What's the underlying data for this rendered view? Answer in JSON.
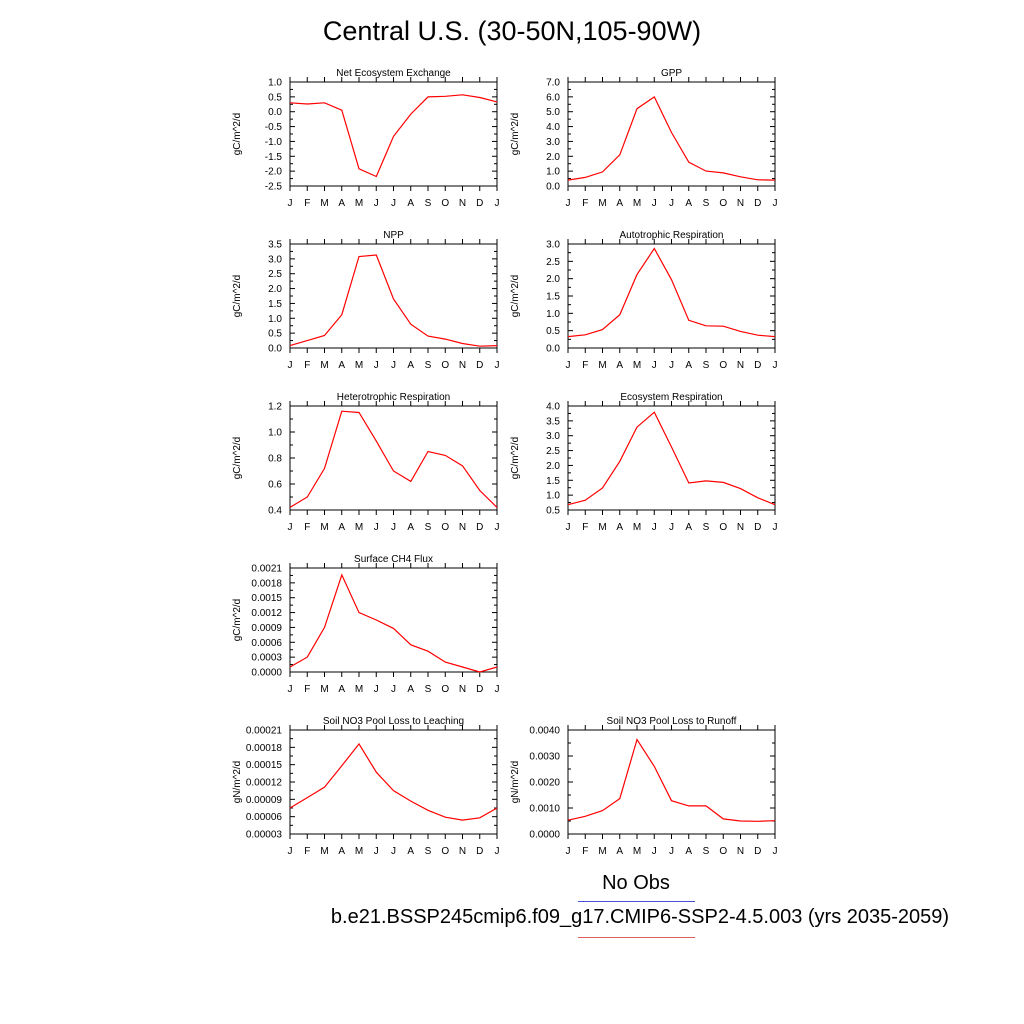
{
  "title": "Central U.S. (30-50N,105-90W)",
  "legend": [
    {
      "label": "No Obs",
      "color": "#4a50d8"
    },
    {
      "label": "b.e21.BSSP245cmip6.f09_g17.CMIP6-SSP2-4.5.003 (yrs 2035-2059)",
      "color": "#e06060"
    }
  ],
  "months": [
    "J",
    "F",
    "M",
    "A",
    "M",
    "J",
    "J",
    "A",
    "S",
    "O",
    "N",
    "D",
    "J"
  ],
  "line_color": "#ff0000",
  "chart_data": [
    {
      "type": "line",
      "title": "Net Ecosystem Exchange",
      "ylabel": "gC/m^2/d",
      "ylim": [
        -2.5,
        1.0
      ],
      "yticks": [
        "1.0",
        "0.5",
        "0.0",
        "-0.5",
        "-1.0",
        "-1.5",
        "-2.0",
        "-2.5"
      ],
      "values": [
        0.3,
        0.26,
        0.3,
        0.05,
        -1.92,
        -2.18,
        -0.83,
        -0.08,
        0.5,
        0.52,
        0.57,
        0.48,
        0.33
      ]
    },
    {
      "type": "line",
      "title": "GPP",
      "ylabel": "gC/m^2/d",
      "ylim": [
        0.0,
        7.0
      ],
      "yticks": [
        "7.0",
        "6.0",
        "5.0",
        "4.0",
        "3.0",
        "2.0",
        "1.0",
        "0.0"
      ],
      "values": [
        0.4,
        0.58,
        0.95,
        2.1,
        5.2,
        6.0,
        3.6,
        1.6,
        1.0,
        0.88,
        0.62,
        0.42,
        0.4
      ]
    },
    {
      "type": "line",
      "title": "NPP",
      "ylabel": "gC/m^2/d",
      "ylim": [
        0.0,
        3.5
      ],
      "yticks": [
        "3.5",
        "3.0",
        "2.5",
        "2.0",
        "1.5",
        "1.0",
        "0.5",
        "0.0"
      ],
      "values": [
        0.08,
        0.25,
        0.42,
        1.12,
        3.08,
        3.13,
        1.65,
        0.8,
        0.4,
        0.3,
        0.15,
        0.06,
        0.08
      ]
    },
    {
      "type": "line",
      "title": "Autotrophic Respiration",
      "ylabel": "gC/m^2/d",
      "ylim": [
        0.0,
        3.0
      ],
      "yticks": [
        "3.0",
        "2.5",
        "2.0",
        "1.5",
        "1.0",
        "0.5",
        "0.0"
      ],
      "values": [
        0.33,
        0.38,
        0.53,
        0.96,
        2.12,
        2.87,
        1.97,
        0.8,
        0.64,
        0.63,
        0.48,
        0.37,
        0.33
      ]
    },
    {
      "type": "line",
      "title": "Heterotrophic Respiration",
      "ylabel": "gC/m^2/d",
      "ylim": [
        0.4,
        1.2
      ],
      "yticks": [
        "1.2",
        "1.0",
        "0.8",
        "0.6",
        "0.4"
      ],
      "values": [
        0.42,
        0.5,
        0.72,
        1.16,
        1.15,
        0.93,
        0.7,
        0.62,
        0.85,
        0.82,
        0.74,
        0.55,
        0.42
      ]
    },
    {
      "type": "line",
      "title": "Ecosystem Respiration",
      "ylabel": "gC/m^2/d",
      "ylim": [
        0.5,
        4.0
      ],
      "yticks": [
        "4.0",
        "3.5",
        "3.0",
        "2.5",
        "2.0",
        "1.5",
        "1.0",
        "0.5"
      ],
      "values": [
        0.68,
        0.83,
        1.24,
        2.14,
        3.29,
        3.79,
        2.62,
        1.41,
        1.48,
        1.43,
        1.22,
        0.91,
        0.68
      ]
    },
    {
      "type": "line",
      "title": "Surface CH4 Flux",
      "ylabel": "gC/m^2/d",
      "ylim": [
        0.0,
        0.0021
      ],
      "yticks": [
        "0.0021",
        "0.0018",
        "0.0015",
        "0.0012",
        "0.0009",
        "0.0006",
        "0.0003",
        "0.0000"
      ],
      "values": [
        0.0001,
        0.0003,
        0.0009,
        0.00196,
        0.0012,
        0.00105,
        0.00088,
        0.00055,
        0.00042,
        0.0002,
        0.0001,
        0.0,
        0.0001
      ]
    },
    {
      "type": "line",
      "title": "Soil NO3 Pool Loss to Leaching",
      "ylabel": "gN/m^2/d",
      "ylim": [
        3e-05,
        0.00021
      ],
      "yticks": [
        "0.00021",
        "0.00018",
        "0.00015",
        "0.00012",
        "0.00009",
        "0.00006",
        "0.00003"
      ],
      "values": [
        7.5e-05,
        9.3e-05,
        0.000111,
        0.000148,
        0.000186,
        0.000137,
        0.000105,
        8.7e-05,
        7.1e-05,
        5.9e-05,
        5.4e-05,
        5.8e-05,
        7.5e-05
      ]
    },
    {
      "type": "line",
      "title": "Soil NO3 Pool Loss to Runoff",
      "ylabel": "gN/m^2/d",
      "ylim": [
        0.0,
        0.004
      ],
      "yticks": [
        "0.0040",
        "0.0030",
        "0.0020",
        "0.0010",
        "0.0000"
      ],
      "values": [
        0.00053,
        0.00068,
        0.0009,
        0.00136,
        0.00363,
        0.0026,
        0.00128,
        0.00108,
        0.00108,
        0.00058,
        0.0005,
        0.00049,
        0.00051
      ]
    }
  ]
}
